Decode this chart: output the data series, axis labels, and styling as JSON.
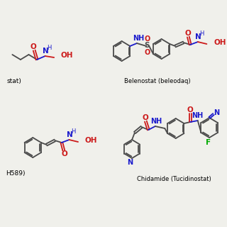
{
  "background_color": "#f0f0eb",
  "bond_color": "#4a4a4a",
  "nitrogen_color": "#1a1acc",
  "oxygen_color": "#cc1a1a",
  "fluorine_color": "#00aa00",
  "label_top_left": "stat)",
  "label_bottom_left": "H589)",
  "label_top_right": "Belenostat (beleodaq)",
  "label_bottom_right": "Chidamide (Tucidinostat)",
  "figsize": [
    3.2,
    3.2
  ],
  "dpi": 100
}
